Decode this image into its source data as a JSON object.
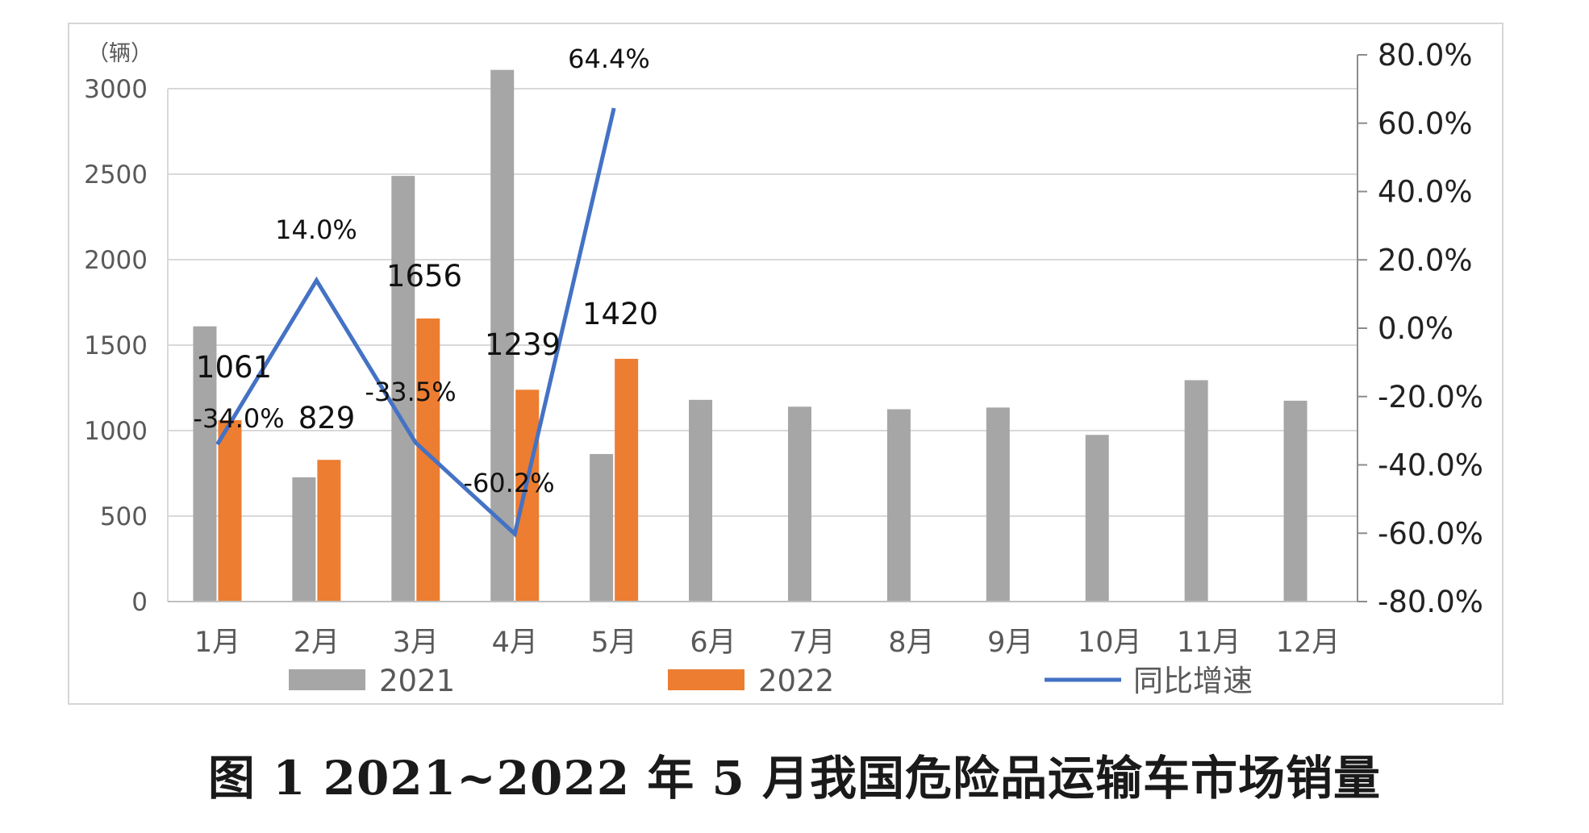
{
  "caption": "图 1 2021~2022 年 5 月我国危险品运输车市场销量",
  "chart_data": {
    "type": "bar",
    "categories": [
      "1月",
      "2月",
      "3月",
      "4月",
      "5月",
      "6月",
      "7月",
      "8月",
      "9月",
      "10月",
      "11月",
      "12月"
    ],
    "series": [
      {
        "name": "2021",
        "type": "bar",
        "color": "#a6a6a6",
        "values": [
          1610,
          727,
          2490,
          3110,
          863,
          1180,
          1140,
          1125,
          1135,
          975,
          1295,
          1175
        ]
      },
      {
        "name": "2022",
        "type": "bar",
        "color": "#ed7d31",
        "values": [
          1061,
          829,
          1656,
          1239,
          1420,
          null,
          null,
          null,
          null,
          null,
          null,
          null
        ],
        "labels": [
          "1061",
          "829",
          "1656",
          "1239",
          "1420"
        ]
      },
      {
        "name": "同比增速",
        "type": "line",
        "axis": "right",
        "color": "#4472c4",
        "values": [
          -34.0,
          14.0,
          -33.5,
          -60.2,
          64.4,
          null,
          null,
          null,
          null,
          null,
          null,
          null
        ],
        "labels": [
          "-34.0%",
          "14.0%",
          "-33.5%",
          "-60.2%",
          "64.4%"
        ]
      }
    ],
    "ylabel": "（辆）",
    "ylim": [
      0,
      3000
    ],
    "yticks": [
      "0",
      "500",
      "1000",
      "1500",
      "2000",
      "2500",
      "3000"
    ],
    "y2lim": [
      -80,
      80
    ],
    "y2ticks": [
      "-80.0%",
      "-60.0%",
      "-40.0%",
      "-20.0%",
      "0.0%",
      "20.0%",
      "40.0%",
      "60.0%",
      "80.0%"
    ],
    "grid": true,
    "legend": "bottom"
  }
}
